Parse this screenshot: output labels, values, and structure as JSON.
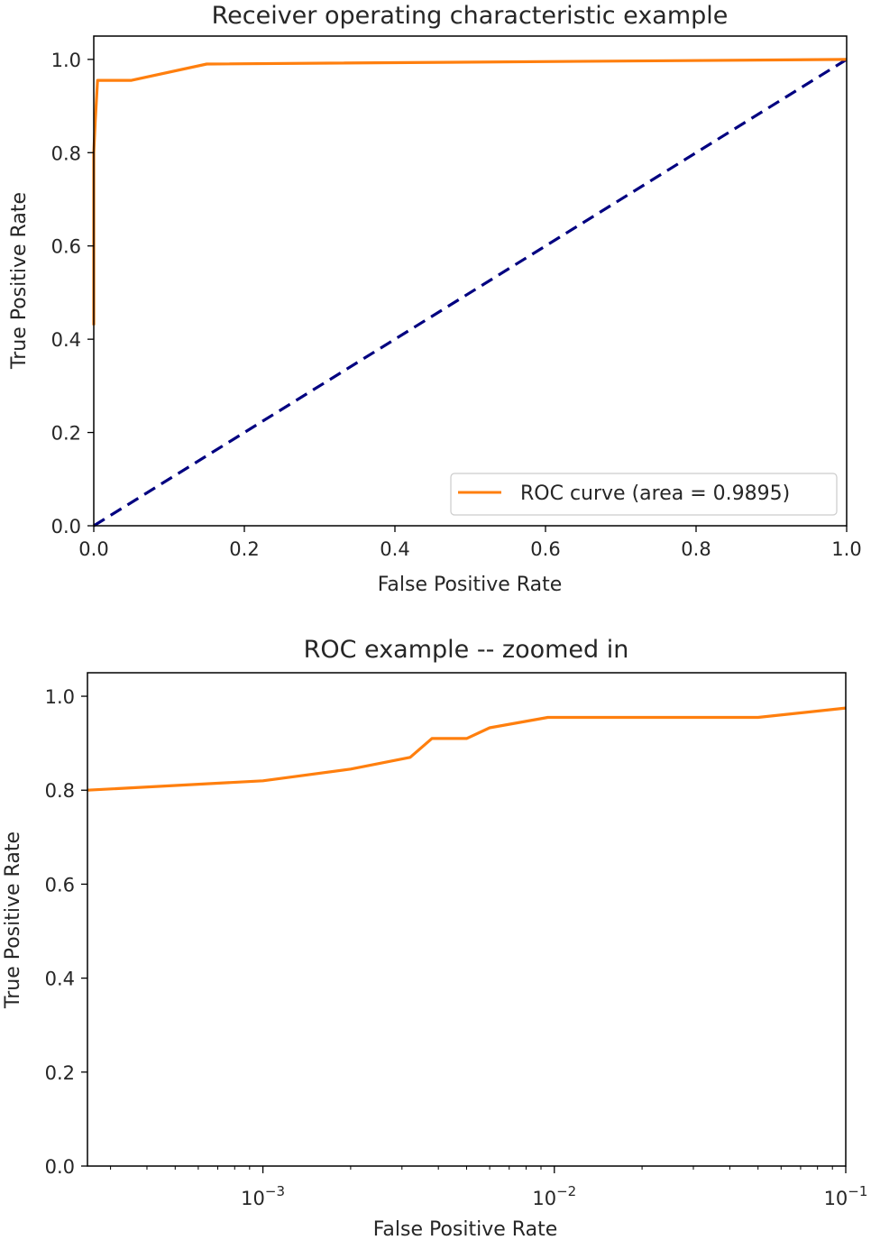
{
  "chart_data": [
    {
      "type": "line",
      "title": "Receiver operating characteristic example",
      "xlabel": "False Positive Rate",
      "ylabel": "True Positive Rate",
      "xlim": [
        0.0,
        1.0
      ],
      "ylim": [
        0.0,
        1.05
      ],
      "x_ticks": [
        "0.0",
        "0.2",
        "0.4",
        "0.6",
        "0.8",
        "1.0"
      ],
      "y_ticks": [
        "0.0",
        "0.2",
        "0.4",
        "0.6",
        "0.8",
        "1.0"
      ],
      "legend_position": "lower-right",
      "grid": false,
      "series": [
        {
          "name": "ROC curve (area = 0.9895)",
          "color": "#ff7f0e",
          "style": "solid",
          "x": [
            0.0,
            0.0,
            0.002,
            0.005,
            0.01,
            0.05,
            0.15,
            1.0
          ],
          "y": [
            0.43,
            0.8,
            0.87,
            0.955,
            0.955,
            0.955,
            0.99,
            1.0
          ]
        },
        {
          "color": "#000080",
          "style": "dashed",
          "x": [
            0.0,
            1.0
          ],
          "y": [
            0.0,
            1.0
          ]
        }
      ]
    },
    {
      "type": "line",
      "title": "ROC example -- zoomed in",
      "xlabel": "False Positive Rate",
      "ylabel": "True Positive Rate",
      "xscale": "log",
      "xlim": [
        0.00025,
        0.1
      ],
      "ylim": [
        0.0,
        1.05
      ],
      "x_ticks": [
        {
          "base": "10",
          "exp": "−3",
          "value": 0.001
        },
        {
          "base": "10",
          "exp": "−2",
          "value": 0.01
        },
        {
          "base": "10",
          "exp": "−1",
          "value": 0.1
        }
      ],
      "y_ticks": [
        "0.0",
        "0.2",
        "0.4",
        "0.6",
        "0.8",
        "1.0"
      ],
      "grid": false,
      "series": [
        {
          "color": "#ff7f0e",
          "style": "solid",
          "x": [
            0.00025,
            0.001,
            0.002,
            0.0032,
            0.0038,
            0.005,
            0.006,
            0.0095,
            0.05,
            0.1
          ],
          "y": [
            0.8,
            0.82,
            0.845,
            0.87,
            0.91,
            0.91,
            0.933,
            0.955,
            0.955,
            0.975
          ]
        }
      ]
    }
  ]
}
